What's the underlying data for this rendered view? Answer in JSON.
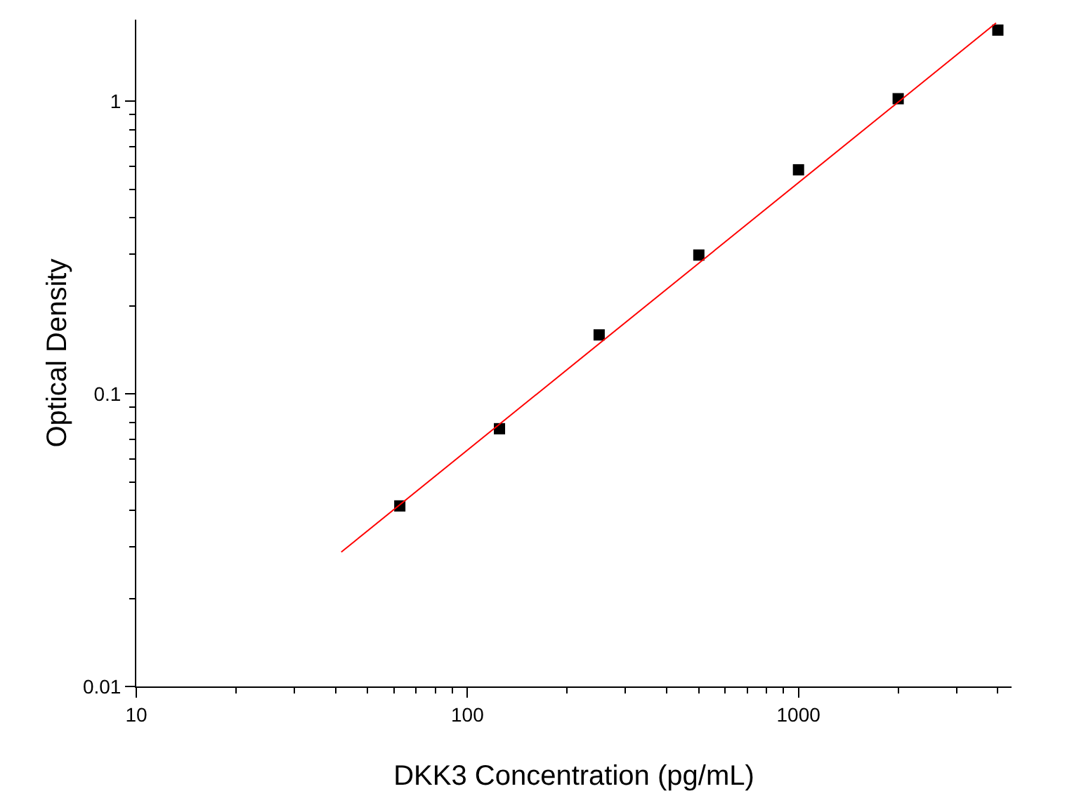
{
  "chart_data": {
    "type": "scatter",
    "xlabel": "DKK3 Concentration (pg/mL)",
    "ylabel": "Optical Density",
    "log": "xy",
    "x": [
      62.5,
      125,
      250,
      500,
      1000,
      2000,
      4000
    ],
    "series": [
      {
        "color": "#000000",
        "marker": "square",
        "values": [
          0.0414,
          0.076,
          0.159,
          0.298,
          0.583,
          1.02,
          1.75
        ]
      },
      {
        "type": "line",
        "color": "#ff0000",
        "marker": "none",
        "line_style": "solid",
        "x": [
          41.6,
          3950
        ],
        "values": [
          0.0288,
          1.85
        ]
      }
    ],
    "xlim": [
      10,
      4400
    ],
    "ylim": [
      0.01,
      1.9
    ],
    "xticks": [
      10,
      100,
      1000
    ],
    "yticks": [
      0.01,
      0.1,
      1
    ],
    "grid": false
  }
}
